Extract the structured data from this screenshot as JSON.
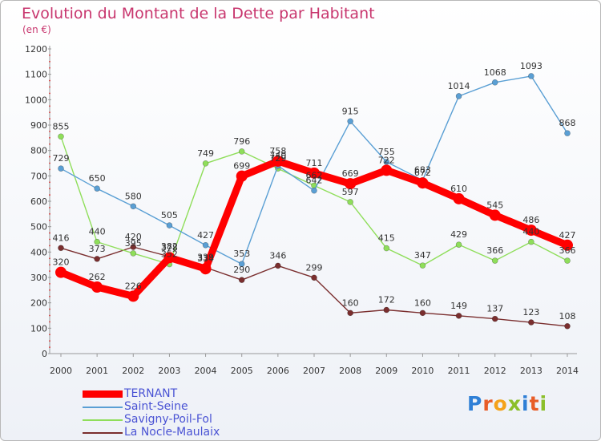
{
  "title": "Evolution du Montant de la Dette par Habitant",
  "subtitle": "(en €)",
  "logo": {
    "text": "Proxiti",
    "letters": [
      {
        "ch": "P",
        "color": "#2f7fd6"
      },
      {
        "ch": "r",
        "color": "#e85c27"
      },
      {
        "ch": "o",
        "color": "#f4a21a"
      },
      {
        "ch": "x",
        "color": "#8bbf2a"
      },
      {
        "ch": "i",
        "color": "#2f7fd6"
      },
      {
        "ch": "t",
        "color": "#e85c27"
      },
      {
        "ch": "i",
        "color": "#8bbf2a"
      }
    ]
  },
  "chart_data": {
    "type": "line",
    "title": "Evolution du Montant de la Dette par Habitant",
    "ylabel": "(en €)",
    "x": [
      2000,
      2001,
      2002,
      2003,
      2004,
      2005,
      2006,
      2007,
      2008,
      2009,
      2010,
      2011,
      2012,
      2013,
      2014
    ],
    "ylim": [
      0,
      1200
    ],
    "yticks": [
      0,
      100,
      200,
      300,
      400,
      500,
      600,
      700,
      800,
      900,
      1000,
      1100,
      1200
    ],
    "grid": false,
    "legend_position": "bottom-left",
    "series": [
      {
        "name": "TERNANT",
        "color": "#ff0000",
        "values": [
          320,
          262,
          226,
          378,
          334,
          699,
          758,
          711,
          669,
          722,
          672,
          610,
          545,
          486,
          427
        ]
      },
      {
        "name": "Saint-Seine",
        "color": "#5a9fd4",
        "values": [
          729,
          650,
          580,
          505,
          427,
          353,
          740,
          642,
          915,
          755,
          683,
          1014,
          1068,
          1093,
          868
        ]
      },
      {
        "name": "Savigny-Poil-Fol",
        "color": "#8fde5a",
        "values": [
          855,
          440,
          395,
          352,
          749,
          796,
          729,
          662,
          597,
          415,
          347,
          429,
          366,
          440,
          366
        ]
      },
      {
        "name": "La Nocle-Maulaix",
        "color": "#7a2e2e",
        "values": [
          416,
          373,
          420,
          382,
          339,
          290,
          346,
          299,
          160,
          172,
          160,
          149,
          137,
          123,
          108
        ]
      }
    ]
  }
}
